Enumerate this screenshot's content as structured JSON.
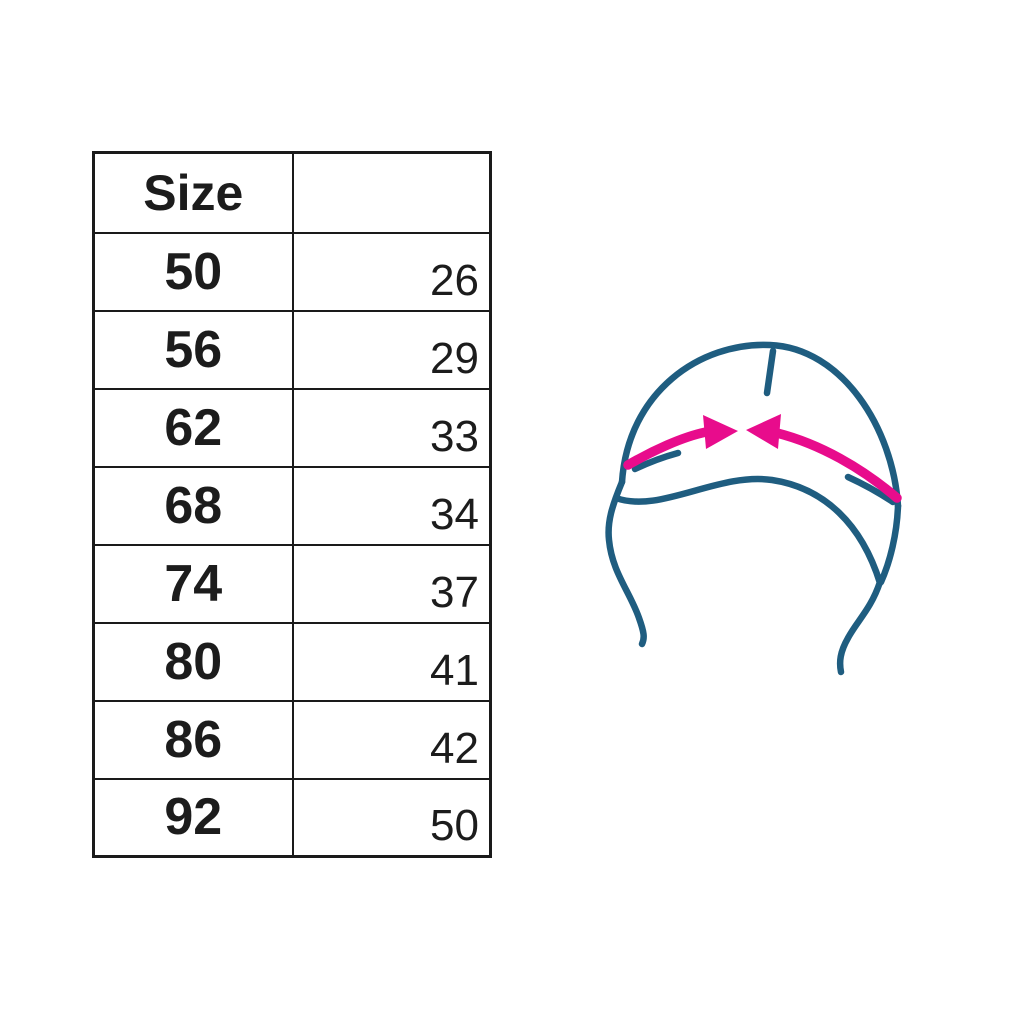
{
  "page": {
    "background": "#ffffff"
  },
  "size_table": {
    "header": {
      "size_label": "Size",
      "measurement_label": ""
    },
    "rows": [
      {
        "size": "50",
        "value": "26"
      },
      {
        "size": "56",
        "value": "29"
      },
      {
        "size": "62",
        "value": "33"
      },
      {
        "size": "68",
        "value": "34"
      },
      {
        "size": "74",
        "value": "37"
      },
      {
        "size": "80",
        "value": "41"
      },
      {
        "size": "86",
        "value": "42"
      },
      {
        "size": "92",
        "value": "50"
      }
    ],
    "text_color": "#1c1c1c",
    "border_color": "#1a1a1a"
  },
  "illustration": {
    "name": "baby-hat-circumference-diagram",
    "line_color": "#1F5D80",
    "arrow_color": "#E80C8C"
  },
  "chart_data": {
    "type": "table",
    "title": "",
    "columns": [
      "Size",
      ""
    ],
    "rows": [
      [
        "50",
        "26"
      ],
      [
        "56",
        "29"
      ],
      [
        "62",
        "33"
      ],
      [
        "68",
        "34"
      ],
      [
        "74",
        "37"
      ],
      [
        "80",
        "41"
      ],
      [
        "86",
        "42"
      ],
      [
        "92",
        "50"
      ]
    ],
    "legend": "none",
    "notes_visible_text_only": true
  }
}
